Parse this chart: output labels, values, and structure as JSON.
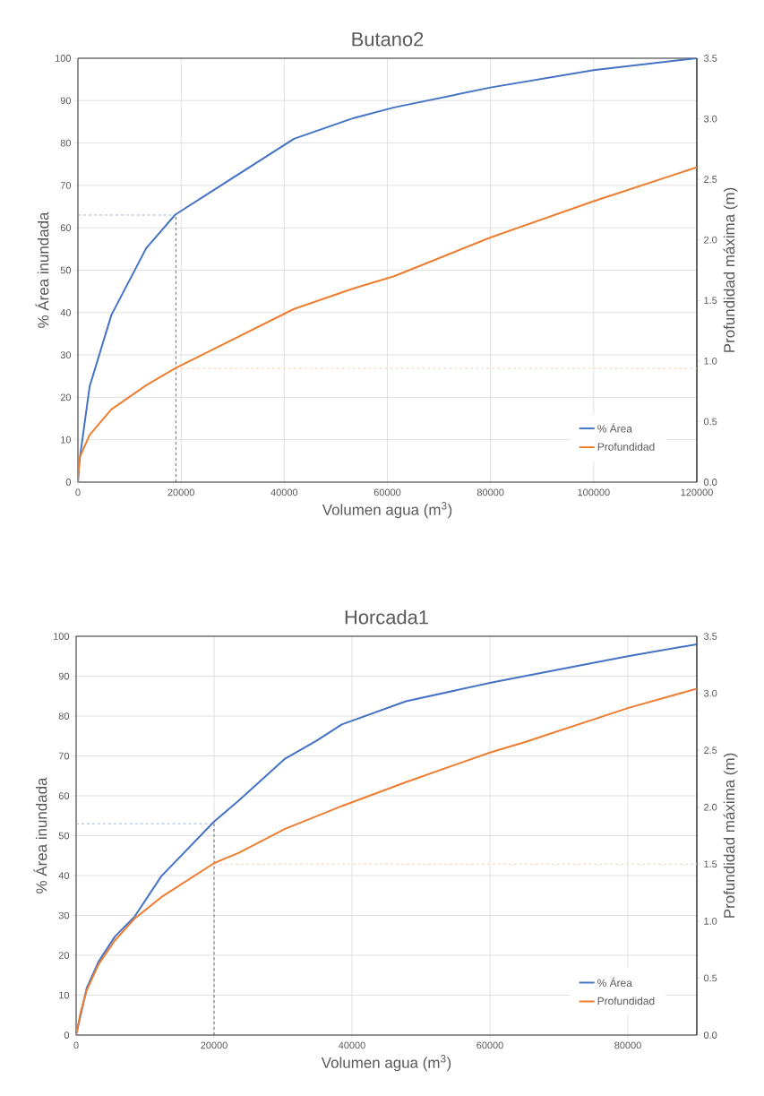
{
  "chart_data": [
    {
      "type": "line",
      "title": "Butano2",
      "xlabel": "Volumen agua (m$^{3}$)",
      "ylabel": "% Área inundada",
      "y2label": "Profundidad máxima (m)",
      "x": [
        0,
        300,
        2260,
        6480,
        13250,
        18880,
        41900,
        53490,
        61300,
        80000,
        100000,
        120000
      ],
      "series": [
        {
          "name": "% Área",
          "color": "#4472c4",
          "values": [
            0,
            5,
            22.5,
            39.4,
            55.2,
            63.1,
            81,
            85.9,
            88.4,
            93.1,
            97.2,
            100
          ]
        },
        {
          "name": "Profundidad",
          "color": "#ed7d31",
          "axis": "y2",
          "values": [
            0,
            0.2,
            0.39,
            0.6,
            0.8,
            0.94,
            1.43,
            1.6,
            1.7,
            2.02,
            2.32,
            2.6
          ]
        }
      ],
      "xlim": [
        0,
        120000
      ],
      "ylim": [
        0,
        100
      ],
      "y2lim": [
        0,
        3.5
      ],
      "xticks": [
        0,
        20000,
        40000,
        60000,
        80000,
        100000,
        120000
      ],
      "yticks": [
        0,
        10,
        20,
        30,
        40,
        50,
        60,
        70,
        80,
        90,
        100
      ],
      "y2ticks": [
        {
          "value": 0,
          "label": "0.0"
        },
        {
          "value": 0.5,
          "label": "0.5"
        },
        {
          "value": 1,
          "label": "1.0"
        },
        {
          "value": 1.5,
          "label": "1.5"
        },
        {
          "value": 2,
          "label": "2.0"
        },
        {
          "value": 2.5,
          "label": "2.5"
        },
        {
          "value": 3,
          "label": "3.0"
        },
        {
          "value": 3.5,
          "label": "3.5"
        }
      ],
      "ref_lines": [
        {
          "axis": "x",
          "value": 19000,
          "color": "#595959",
          "line_style": "dashed"
        },
        {
          "axis": "y",
          "value": 63,
          "color": "#8faadc",
          "line_style": "dashed"
        },
        {
          "axis": "y2",
          "value": 0.94,
          "color": "#f8cbad",
          "line_style": "dashed"
        }
      ],
      "grid": true,
      "legend": "bottom right"
    },
    {
      "type": "line",
      "title": "Horcada1",
      "xlabel": "Volumen agua (m$^{3}$)",
      "ylabel": "% Área inundada",
      "y2label": "Profundidad máxima (m)",
      "x": [
        0,
        650,
        1520,
        3250,
        5620,
        8440,
        12340,
        20040,
        23590,
        30300,
        34840,
        38530,
        47830,
        60000,
        65000,
        80000,
        90000
      ],
      "series": [
        {
          "name": "% Área",
          "color": "#4472c4",
          "values": [
            0,
            null,
            11.7,
            18.4,
            24.7,
            29.6,
            39.8,
            53.6,
            58.8,
            69.3,
            73.8,
            77.9,
            83.7,
            88.3,
            90,
            95,
            98
          ]
        },
        {
          "name": "Profundidad",
          "color": "#ed7d31",
          "axis": "y2",
          "values": [
            0,
            0.2,
            0.39,
            0.62,
            0.83,
            1.02,
            1.21,
            1.51,
            1.6,
            1.81,
            1.92,
            2.01,
            2.22,
            2.48,
            2.57,
            2.87,
            3.04
          ]
        }
      ],
      "xlim": [
        0,
        90000
      ],
      "ylim": [
        0,
        100
      ],
      "y2lim": [
        0,
        3.5
      ],
      "xticks": [
        0,
        20000,
        40000,
        60000,
        80000
      ],
      "yticks": [
        0,
        10,
        20,
        30,
        40,
        50,
        60,
        70,
        80,
        90,
        100
      ],
      "y2ticks": [
        {
          "value": 0,
          "label": "0.0"
        },
        {
          "value": 0.5,
          "label": "0.5"
        },
        {
          "value": 1,
          "label": "1.0"
        },
        {
          "value": 1.5,
          "label": "1.5"
        },
        {
          "value": 2,
          "label": "2.0"
        },
        {
          "value": 2.5,
          "label": "2.5"
        },
        {
          "value": 3,
          "label": "3.0"
        },
        {
          "value": 3.5,
          "label": "3.5"
        }
      ],
      "ref_lines": [
        {
          "axis": "x",
          "value": 20000,
          "color": "#595959",
          "line_style": "dashed"
        },
        {
          "axis": "y",
          "value": 53,
          "color": "#8faadc",
          "line_style": "dashed"
        },
        {
          "axis": "y2",
          "value": 1.5,
          "color": "#f8cbad",
          "line_style": "dashed"
        }
      ],
      "grid": true,
      "legend": "bottom right"
    }
  ]
}
